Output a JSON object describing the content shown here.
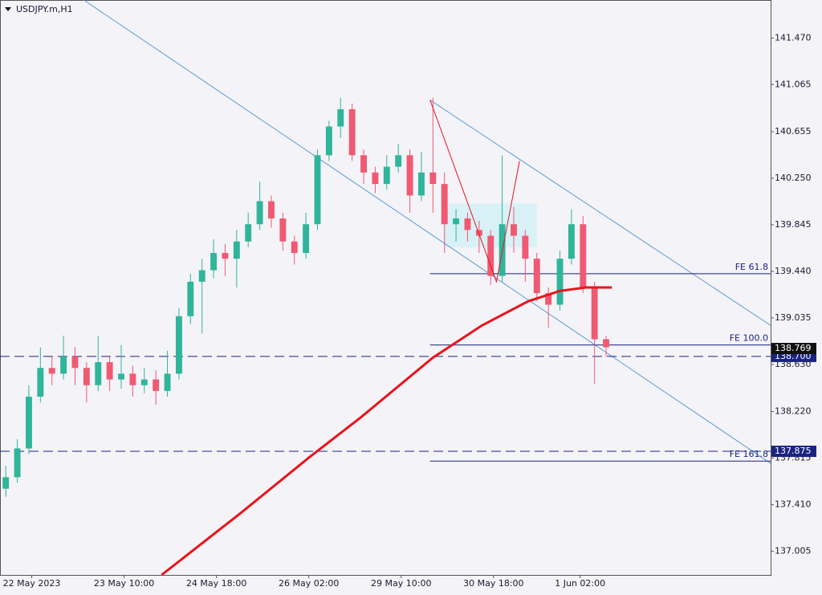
{
  "chart_data": {
    "type": "candlestick",
    "title": "USDJPY.m,H1",
    "xlim": [
      0,
      267
    ],
    "ylim": [
      136.8,
      141.8
    ],
    "xticks": [
      {
        "value": 11,
        "label": "22 May 2023"
      },
      {
        "value": 43,
        "label": "23 May 10:00"
      },
      {
        "value": 75,
        "label": "24 May 18:00"
      },
      {
        "value": 107,
        "label": "26 May 02:00"
      },
      {
        "value": 139,
        "label": "29 May 10:00"
      },
      {
        "value": 171,
        "label": "30 May 18:00"
      },
      {
        "value": 201,
        "label": "1 Jun 02:00"
      }
    ],
    "yticks": [
      {
        "value": 141.47,
        "label": "141.470"
      },
      141.065,
      140.655,
      {
        "value": 140.25,
        "label": "140.250"
      },
      139.845,
      {
        "value": 139.44,
        "label": "139.440"
      },
      139.035,
      {
        "value": 138.63,
        "label": "138.630"
      },
      {
        "value": 138.22,
        "label": "138.220"
      },
      137.815,
      {
        "value": 137.41,
        "label": "137.410"
      },
      137.005
    ],
    "up_color": "#2fb59a",
    "down_color": "#ef5a72",
    "x": [
      2,
      6,
      10,
      14,
      18,
      22,
      26,
      30,
      34,
      38,
      42,
      46,
      50,
      54,
      58,
      62,
      66,
      70,
      74,
      78,
      82,
      86,
      90,
      94,
      98,
      102,
      106,
      110,
      114,
      118,
      122,
      126,
      130,
      134,
      138,
      142,
      146,
      150,
      154,
      158,
      162,
      166,
      170,
      174,
      178,
      182,
      186,
      190,
      194,
      198,
      202,
      206,
      210
    ],
    "open": [
      137.55,
      137.65,
      137.9,
      138.35,
      138.6,
      138.55,
      138.7,
      138.6,
      138.45,
      138.65,
      138.5,
      138.55,
      138.45,
      138.5,
      138.4,
      138.55,
      139.05,
      139.35,
      139.45,
      139.6,
      139.55,
      139.7,
      139.85,
      140.05,
      139.9,
      139.7,
      139.6,
      139.85,
      140.45,
      140.7,
      140.85,
      140.45,
      140.3,
      140.2,
      140.35,
      140.45,
      140.1,
      140.3,
      140.2,
      139.85,
      139.9,
      139.8,
      139.75,
      139.4,
      139.85,
      139.75,
      139.55,
      139.25,
      139.15,
      139.55,
      139.85,
      139.3,
      138.85
    ],
    "high": [
      137.75,
      137.98,
      138.45,
      138.78,
      138.7,
      138.88,
      138.78,
      138.65,
      138.88,
      138.7,
      138.8,
      138.62,
      138.6,
      138.58,
      138.75,
      139.12,
      139.42,
      139.55,
      139.72,
      139.68,
      139.8,
      139.95,
      140.22,
      140.1,
      139.95,
      139.75,
      139.95,
      140.5,
      140.75,
      140.95,
      140.9,
      140.5,
      140.35,
      140.45,
      140.55,
      140.5,
      140.48,
      140.95,
      140.3,
      139.98,
      139.95,
      139.88,
      139.8,
      140.45,
      140.0,
      139.8,
      139.6,
      139.3,
      139.62,
      139.98,
      139.92,
      139.35,
      138.88
    ],
    "low": [
      137.48,
      137.6,
      137.85,
      138.3,
      138.45,
      138.5,
      138.45,
      138.3,
      138.4,
      138.4,
      138.42,
      138.35,
      138.38,
      138.28,
      138.35,
      138.5,
      138.98,
      138.9,
      139.38,
      139.4,
      139.3,
      139.65,
      139.8,
      139.82,
      139.62,
      139.5,
      139.55,
      139.8,
      140.4,
      140.6,
      140.4,
      140.2,
      140.12,
      140.15,
      140.3,
      139.95,
      140.05,
      139.95,
      139.6,
      139.7,
      139.7,
      139.6,
      139.32,
      139.35,
      139.6,
      139.35,
      139.18,
      138.95,
      139.1,
      139.5,
      139.25,
      138.46,
      138.7
    ],
    "close": [
      137.65,
      137.9,
      138.35,
      138.6,
      138.55,
      138.7,
      138.6,
      138.45,
      138.65,
      138.5,
      138.55,
      138.45,
      138.5,
      138.4,
      138.55,
      139.05,
      139.35,
      139.45,
      139.6,
      139.55,
      139.7,
      139.85,
      140.05,
      139.9,
      139.7,
      139.6,
      139.85,
      140.45,
      140.7,
      140.85,
      140.45,
      140.3,
      140.2,
      140.35,
      140.45,
      140.1,
      140.3,
      140.2,
      139.85,
      139.9,
      139.8,
      139.75,
      139.4,
      139.85,
      139.75,
      139.55,
      139.25,
      139.15,
      139.55,
      139.85,
      139.3,
      138.85,
      138.78
    ],
    "moving_average": {
      "color": "#e8141c",
      "x": [
        56,
        83,
        107,
        125,
        150,
        167,
        183,
        194,
        203,
        212
      ],
      "values": [
        136.8,
        137.33,
        137.82,
        138.17,
        138.69,
        138.97,
        139.18,
        139.27,
        139.3,
        139.3
      ]
    },
    "channel": {
      "color": "#5b9bd5",
      "lines": [
        {
          "x": [
            29,
            267
          ],
          "values": [
            141.8,
            137.77
          ]
        },
        {
          "x": [
            149,
            267
          ],
          "values": [
            140.93,
            138.97
          ]
        }
      ]
    },
    "zigzag": {
      "color": "#e8141c",
      "x": [
        149,
        172,
        180
      ],
      "values": [
        140.93,
        139.35,
        140.4
      ]
    },
    "zone": {
      "color": "#d8f1f7",
      "x": [
        154,
        186
      ],
      "values": [
        140.03,
        139.65
      ]
    },
    "levels": {
      "color": "#1a237e",
      "start": 149,
      "items": [
        {
          "name": "FE 61.8",
          "value": 139.42
        },
        {
          "name": "FE 100.0",
          "value": 138.8
        },
        {
          "name": "FE 161.8",
          "value": 137.79
        }
      ]
    },
    "price_lines": [
      {
        "label": "138.700",
        "value": 138.7
      },
      {
        "label": "137.875",
        "value": 137.875
      }
    ],
    "current_price": {
      "label": "138.769",
      "value": 138.769
    }
  }
}
